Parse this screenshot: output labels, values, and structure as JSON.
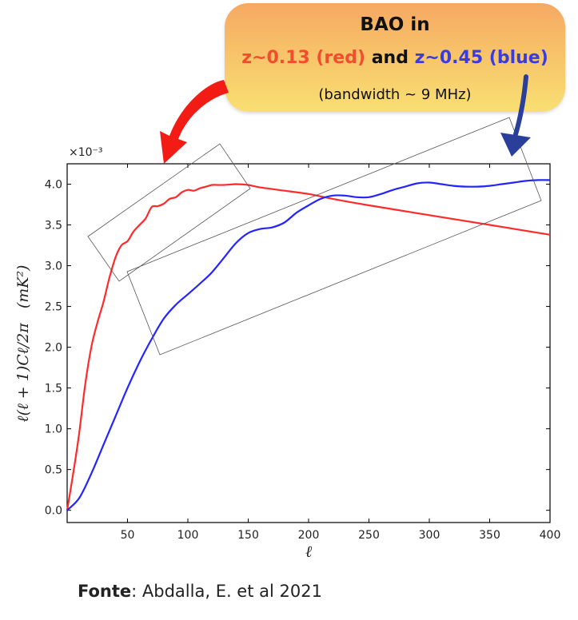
{
  "callout": {
    "line1": "BAO in",
    "red_label": "z~0.13 (red)",
    "and_label": "and",
    "blue_label": "z~0.45 (blue)",
    "line3": "(bandwidth ~ 9 MHz)"
  },
  "source": {
    "label": "Fonte",
    "text": ": Abdalla, E. et al 2021"
  },
  "chart_data": {
    "type": "line",
    "title": "",
    "xlabel": "ℓ",
    "ylabel": "ℓ(ℓ + 1)Cℓ/2π   (mK²)",
    "y_multiplier": "×10⁻³",
    "xlim": [
      0,
      400
    ],
    "ylim": [
      -0.15,
      4.25
    ],
    "xticks": [
      50,
      100,
      150,
      200,
      250,
      300,
      350,
      400
    ],
    "yticks": [
      "0.0",
      "0.5",
      "1.0",
      "1.5",
      "2.0",
      "2.5",
      "3.0",
      "3.5",
      "4.0"
    ],
    "grid": false,
    "series": [
      {
        "color": "#ff2a2a",
        "x": [
          0,
          5,
          10,
          15,
          20,
          25,
          30,
          35,
          40,
          45,
          50,
          55,
          60,
          65,
          70,
          75,
          80,
          85,
          90,
          95,
          100,
          105,
          110,
          115,
          120,
          125,
          130,
          140,
          150,
          160,
          180,
          200,
          220,
          250,
          300,
          350,
          400
        ],
        "y": [
          0.0,
          0.45,
          0.95,
          1.55,
          2.0,
          2.3,
          2.55,
          2.85,
          3.1,
          3.25,
          3.3,
          3.42,
          3.5,
          3.58,
          3.72,
          3.73,
          3.76,
          3.82,
          3.84,
          3.9,
          3.93,
          3.92,
          3.95,
          3.97,
          3.99,
          3.99,
          3.99,
          4.0,
          3.99,
          3.96,
          3.92,
          3.88,
          3.82,
          3.74,
          3.62,
          3.5,
          3.38
        ]
      },
      {
        "color": "#2424ff",
        "x": [
          0,
          10,
          20,
          30,
          40,
          50,
          60,
          70,
          80,
          90,
          100,
          110,
          120,
          130,
          140,
          150,
          160,
          170,
          180,
          190,
          200,
          210,
          220,
          230,
          240,
          250,
          260,
          270,
          280,
          290,
          300,
          310,
          320,
          330,
          340,
          350,
          360,
          370,
          380,
          390,
          400
        ],
        "y": [
          0.0,
          0.15,
          0.45,
          0.8,
          1.15,
          1.5,
          1.82,
          2.1,
          2.35,
          2.52,
          2.65,
          2.78,
          2.92,
          3.1,
          3.28,
          3.4,
          3.45,
          3.47,
          3.53,
          3.65,
          3.74,
          3.82,
          3.86,
          3.86,
          3.84,
          3.84,
          3.88,
          3.93,
          3.97,
          4.01,
          4.02,
          4.0,
          3.98,
          3.97,
          3.97,
          3.98,
          4.0,
          4.02,
          4.04,
          4.05,
          4.05
        ]
      }
    ]
  }
}
